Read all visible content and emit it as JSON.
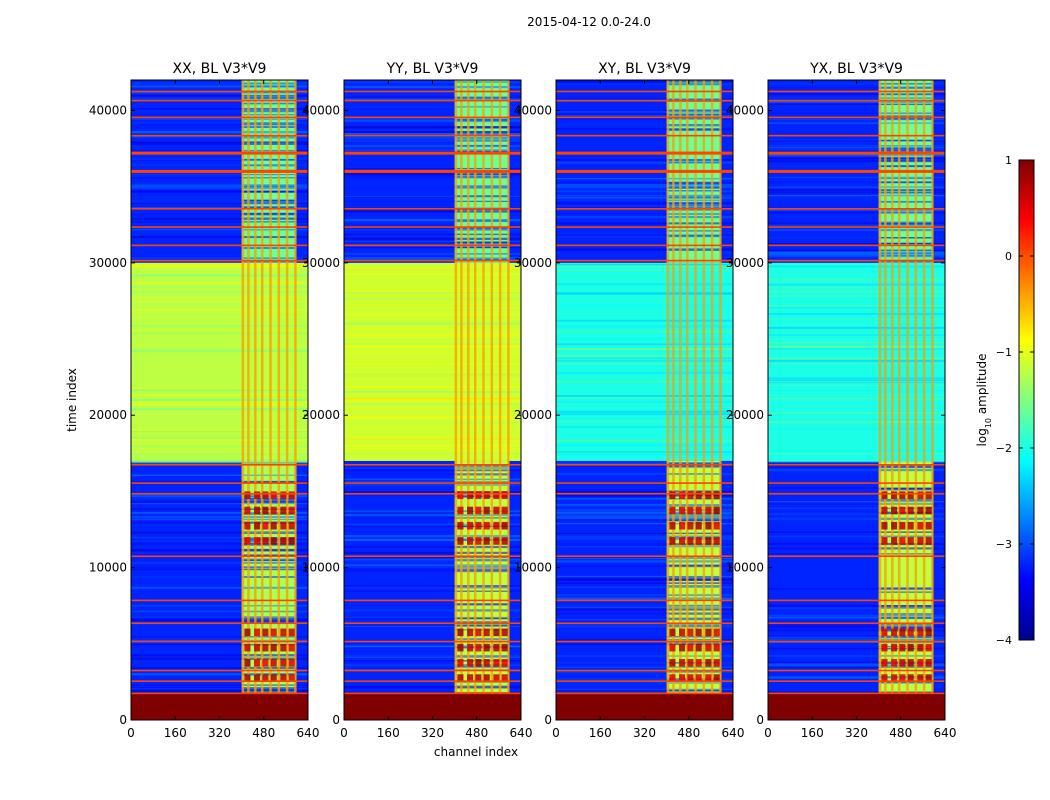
{
  "figure": {
    "suptitle": "2015-04-12 0.0-24.0",
    "xlabel": "channel index",
    "ylabel": "time index"
  },
  "colorbar": {
    "label": "log",
    "label_sub": "10",
    "label_suffix": " amplitude",
    "ticks": [
      "1",
      "0",
      "−1",
      "−2",
      "−3",
      "−4"
    ],
    "tick_values": [
      1,
      0,
      -1,
      -2,
      -3,
      -4
    ],
    "range": [
      -4,
      1
    ],
    "colormap": "jet",
    "colors": [
      "#00008f",
      "#0000ff",
      "#0080ff",
      "#00ffff",
      "#80ff80",
      "#ffff00",
      "#ff8000",
      "#ff0000",
      "#800000"
    ]
  },
  "chart_data": [
    {
      "type": "heatmap",
      "title": "XX, BL V3*V9",
      "xlabel": "channel index",
      "ylabel": "time index",
      "xlim": [
        0,
        640
      ],
      "ylim": [
        0,
        42000
      ],
      "xticks": [
        "0",
        "160",
        "320",
        "480",
        "640"
      ],
      "yticks": [
        "0",
        "10000",
        "20000",
        "30000",
        "40000"
      ],
      "show_ytick_labels_inside": false,
      "value_range": [
        -4,
        1
      ],
      "regions": [
        {
          "name": "background",
          "t": [
            1800,
            42000
          ],
          "ch": [
            0,
            640
          ],
          "value": -3.2
        },
        {
          "name": "bright band",
          "t": [
            17000,
            30000
          ],
          "ch": [
            0,
            640
          ],
          "value": -1.2
        },
        {
          "name": "rfi channels low",
          "t": [
            1800,
            17000
          ],
          "ch": [
            400,
            595
          ],
          "value": -1.3
        },
        {
          "name": "rfi channels high",
          "t": [
            30000,
            42000
          ],
          "ch": [
            400,
            595
          ],
          "value": -1.6
        },
        {
          "name": "flagged start",
          "t": [
            0,
            1800
          ],
          "ch": [
            0,
            640
          ],
          "value": 1.0
        }
      ]
    },
    {
      "type": "heatmap",
      "title": "YY, BL V3*V9",
      "xlabel": "channel index",
      "ylabel": "time index",
      "xlim": [
        0,
        640
      ],
      "ylim": [
        0,
        42000
      ],
      "xticks": [
        "0",
        "160",
        "320",
        "480",
        "640"
      ],
      "yticks": [
        "0",
        "10000",
        "20000",
        "30000",
        "40000"
      ],
      "value_range": [
        -4,
        1
      ],
      "regions": [
        {
          "name": "background",
          "t": [
            1800,
            42000
          ],
          "ch": [
            0,
            640
          ],
          "value": -3.2
        },
        {
          "name": "bright band",
          "t": [
            17000,
            30000
          ],
          "ch": [
            0,
            640
          ],
          "value": -1.1
        },
        {
          "name": "rfi channels low",
          "t": [
            1800,
            17000
          ],
          "ch": [
            400,
            595
          ],
          "value": -1.2
        },
        {
          "name": "rfi channels high",
          "t": [
            30000,
            42000
          ],
          "ch": [
            400,
            595
          ],
          "value": -1.6
        },
        {
          "name": "flagged start",
          "t": [
            0,
            1800
          ],
          "ch": [
            0,
            640
          ],
          "value": 1.0
        }
      ]
    },
    {
      "type": "heatmap",
      "title": "XY, BL V3*V9",
      "xlabel": "channel index",
      "ylabel": "time index",
      "xlim": [
        0,
        640
      ],
      "ylim": [
        0,
        42000
      ],
      "xticks": [
        "0",
        "160",
        "320",
        "480",
        "640"
      ],
      "yticks": [
        "0",
        "10000",
        "20000",
        "30000",
        "40000"
      ],
      "value_range": [
        -4,
        1
      ],
      "regions": [
        {
          "name": "background",
          "t": [
            1800,
            42000
          ],
          "ch": [
            0,
            640
          ],
          "value": -3.2
        },
        {
          "name": "bright band",
          "t": [
            17000,
            30000
          ],
          "ch": [
            0,
            640
          ],
          "value": -2.0
        },
        {
          "name": "rfi channels low",
          "t": [
            1800,
            17000
          ],
          "ch": [
            400,
            595
          ],
          "value": -1.2
        },
        {
          "name": "rfi channels high",
          "t": [
            30000,
            42000
          ],
          "ch": [
            400,
            595
          ],
          "value": -1.6
        },
        {
          "name": "flagged start",
          "t": [
            0,
            1800
          ],
          "ch": [
            0,
            640
          ],
          "value": 1.0
        }
      ]
    },
    {
      "type": "heatmap",
      "title": "YX, BL V3*V9",
      "xlabel": "channel index",
      "ylabel": "time index",
      "xlim": [
        0,
        640
      ],
      "ylim": [
        0,
        42000
      ],
      "xticks": [
        "0",
        "160",
        "320",
        "480",
        "640"
      ],
      "yticks": [
        "0",
        "10000",
        "20000",
        "30000",
        "40000"
      ],
      "value_range": [
        -4,
        1
      ],
      "regions": [
        {
          "name": "background",
          "t": [
            1800,
            42000
          ],
          "ch": [
            0,
            640
          ],
          "value": -3.2
        },
        {
          "name": "bright band",
          "t": [
            17000,
            30000
          ],
          "ch": [
            0,
            640
          ],
          "value": -2.0
        },
        {
          "name": "rfi channels low",
          "t": [
            1800,
            17000
          ],
          "ch": [
            400,
            595
          ],
          "value": -1.2
        },
        {
          "name": "rfi channels high",
          "t": [
            30000,
            42000
          ],
          "ch": [
            400,
            595
          ],
          "value": -1.6
        },
        {
          "name": "flagged start",
          "t": [
            0,
            1800
          ],
          "ch": [
            0,
            640
          ],
          "value": 1.0
        }
      ]
    }
  ]
}
